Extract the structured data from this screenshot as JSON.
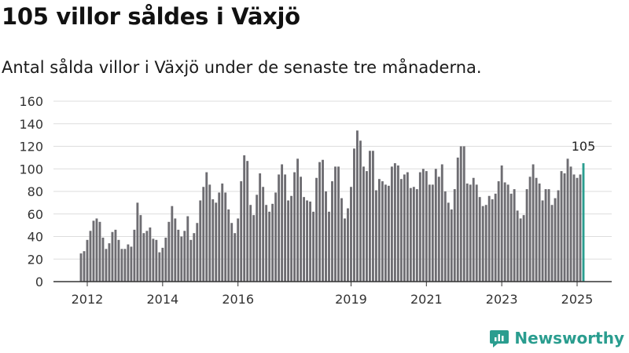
{
  "header": {
    "title": "105 villor såldes i Växjö",
    "subtitle": "Antal sålda villor i Växjö under de senaste tre månaderna."
  },
  "brand": {
    "name": "Newsworthy",
    "icon": "newsworthy-logo-icon"
  },
  "colors": {
    "bar": "#6e6d72",
    "highlight": "#2a9d8f",
    "grid": "#dddddd",
    "axis": "#333333",
    "text": "#333333"
  },
  "chart_data": {
    "type": "bar",
    "title": "105 villor såldes i Växjö",
    "xlabel": "",
    "ylabel": "",
    "ylim": [
      0,
      160
    ],
    "yticks": [
      "0",
      "20",
      "40",
      "60",
      "80",
      "100",
      "120",
      "140",
      "160"
    ],
    "x_start": "2011-11",
    "x_end": "2025-09",
    "x_tick_labels": [
      {
        "label": "2012",
        "index": 2
      },
      {
        "label": "2014",
        "index": 26
      },
      {
        "label": "2016",
        "index": 50
      },
      {
        "label": "2019",
        "index": 86
      },
      {
        "label": "2021",
        "index": 110
      },
      {
        "label": "2023",
        "index": 134
      },
      {
        "label": "2025",
        "index": 158
      }
    ],
    "highlight_label": "105",
    "values": [
      25,
      27,
      37,
      45,
      54,
      56,
      53,
      39,
      29,
      34,
      44,
      46,
      37,
      29,
      29,
      33,
      31,
      46,
      70,
      59,
      43,
      45,
      48,
      38,
      37,
      26,
      30,
      39,
      53,
      67,
      56,
      46,
      40,
      45,
      58,
      37,
      43,
      52,
      72,
      84,
      97,
      86,
      73,
      70,
      79,
      87,
      79,
      64,
      52,
      43,
      56,
      89,
      112,
      107,
      68,
      59,
      77,
      96,
      84,
      68,
      62,
      69,
      79,
      95,
      104,
      95,
      72,
      76,
      97,
      109,
      93,
      75,
      72,
      71,
      62,
      92,
      106,
      108,
      80,
      62,
      89,
      102,
      102,
      74,
      56,
      65,
      84,
      118,
      134,
      125,
      102,
      98,
      116,
      116,
      81,
      91,
      89,
      86,
      85,
      102,
      105,
      103,
      91,
      95,
      97,
      83,
      84,
      82,
      97,
      100,
      98,
      86,
      86,
      100,
      93,
      104,
      80,
      70,
      64,
      82,
      110,
      120,
      120,
      87,
      86,
      92,
      86,
      75,
      67,
      68,
      76,
      73,
      78,
      89,
      103,
      88,
      86,
      78,
      82,
      63,
      56,
      59,
      82,
      93,
      104,
      92,
      87,
      72,
      82,
      82,
      68,
      74,
      81,
      98,
      96,
      109,
      102,
      95,
      92,
      95,
      105
    ]
  }
}
